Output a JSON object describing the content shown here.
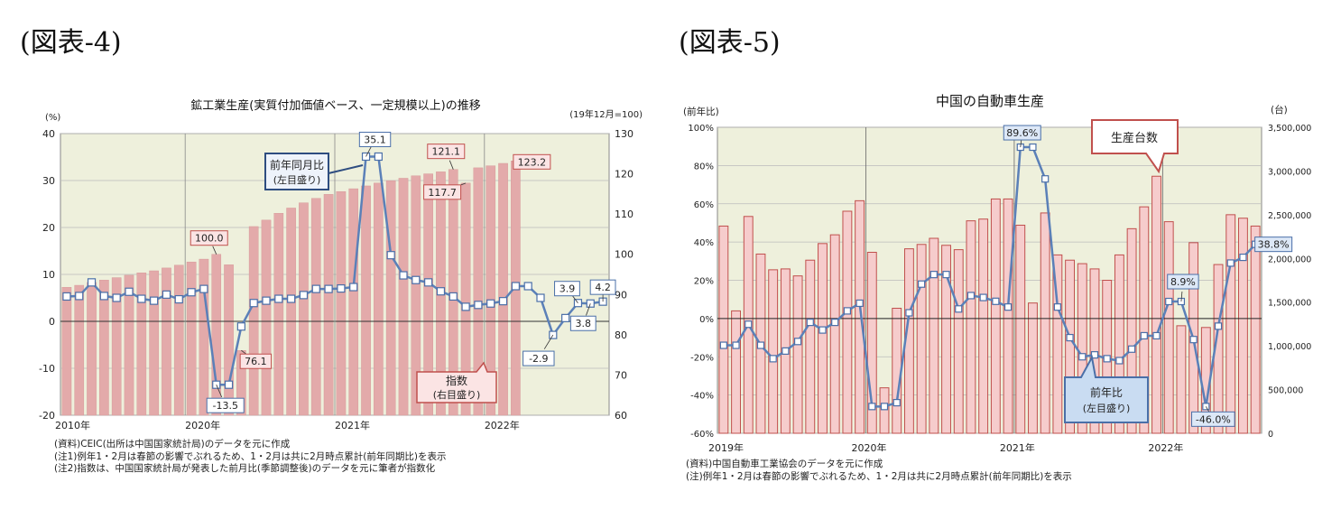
{
  "figures": [
    {
      "label": "(図表-4)",
      "notes": [
        "(資料)CEIC(出所は中国国家統計局)のデータを元に作成",
        "(注1)例年1・2月は春節の影響でぶれるため、1・2月は共に2月時点累計(前年同期比)を表示",
        "(注2)指数は、中国国家統計局が発表した前月比(季節調整後)のデータを元に筆者が指数化"
      ]
    },
    {
      "label": "(図表-5)",
      "notes": [
        "(資料)中国自動車工業協会のデータを元に作成",
        "(注)例年1・2月は春節の影響でぶれるため、1・2月は共に2月時点累計(前年同期比)を表示"
      ]
    }
  ],
  "chart_data": [
    {
      "type": "bar",
      "title": "鉱工業生産(実質付加価値ベース、一定規模以上)の推移",
      "left_unit": "(%)",
      "right_unit": "(19年12月=100)",
      "ylim": [
        -20,
        40
      ],
      "y_ticks": [
        -20,
        -10,
        0,
        10,
        20,
        30,
        40
      ],
      "y2lim": [
        60,
        130
      ],
      "y2_ticks": [
        60,
        70,
        80,
        90,
        100,
        110,
        120,
        130
      ],
      "x_tick_labels": [
        {
          "index": 0,
          "label": "2010年"
        },
        {
          "index": 10,
          "label": "2020年"
        },
        {
          "index": 22,
          "label": "2021年"
        },
        {
          "index": 34,
          "label": "2022年"
        }
      ],
      "line_series": {
        "name": "前年同月比",
        "name_line2": "(左目盛り)",
        "values": [
          5.3,
          5.4,
          8.3,
          5.4,
          5.0,
          6.3,
          4.8,
          4.4,
          5.7,
          4.7,
          6.2,
          6.9,
          -13.5,
          -13.5,
          -1.1,
          3.9,
          4.4,
          4.8,
          4.8,
          5.6,
          6.9,
          6.9,
          7.0,
          7.3,
          35.1,
          35.1,
          14.1,
          9.8,
          8.8,
          8.3,
          6.4,
          5.3,
          3.1,
          3.5,
          3.8,
          4.3,
          7.5,
          7.5,
          5.0,
          -2.9,
          0.7,
          3.9,
          3.8,
          4.2
        ],
        "labels": [
          {
            "index": 12,
            "text": "-13.5"
          },
          {
            "index": 24,
            "text": "35.1"
          },
          {
            "index": 39,
            "text": "-2.9"
          },
          {
            "index": 41,
            "text": "3.9"
          },
          {
            "index": 42,
            "text": "3.8"
          },
          {
            "index": 43,
            "text": "4.2"
          }
        ]
      },
      "bar_series": {
        "name": "指数",
        "name_line2": "(右目盛り)",
        "values": [
          91.8,
          92.3,
          93.0,
          93.6,
          94.2,
          94.8,
          95.4,
          95.9,
          96.6,
          97.3,
          98.1,
          98.8,
          100.0,
          97.4,
          76.1,
          106.9,
          108.5,
          110.2,
          111.5,
          112.8,
          113.9,
          114.9,
          115.6,
          116.3,
          117.0,
          117.7,
          118.3,
          118.9,
          119.5,
          120.0,
          120.5,
          121.1,
          117.7,
          121.5,
          122.0,
          122.6,
          123.2
        ],
        "labels": [
          {
            "index": 12,
            "text": "100.0"
          },
          {
            "index": 14,
            "text": "76.1"
          },
          {
            "index": 31,
            "text": "121.1"
          },
          {
            "index": 32,
            "text": "117.7"
          },
          {
            "index": 36,
            "text": "123.2"
          }
        ]
      }
    },
    {
      "type": "bar",
      "title": "中国の自動車生産",
      "left_unit": "(前年比)",
      "right_unit": "(台)",
      "ylim": [
        -60,
        100
      ],
      "y_ticks": [
        "-60%",
        "-40%",
        "-20%",
        "0%",
        "20%",
        "40%",
        "60%",
        "80%",
        "100%"
      ],
      "y2lim": [
        0,
        3500000
      ],
      "y2_ticks": [
        "0",
        "500,000",
        "1,000,000",
        "1,500,000",
        "2,000,000",
        "2,500,000",
        "3,000,000",
        "3,500,000"
      ],
      "x_tick_labels": [
        {
          "index": 0,
          "label": "2019年"
        },
        {
          "index": 12,
          "label": "2020年"
        },
        {
          "index": 24,
          "label": "2021年"
        },
        {
          "index": 36,
          "label": "2022年"
        }
      ],
      "bar_series": {
        "name": "生産台数",
        "values": [
          2370000,
          1400000,
          2480000,
          2050000,
          1870000,
          1880000,
          1800000,
          1980000,
          2170000,
          2270000,
          2540000,
          2660000,
          2070000,
          520000,
          1430000,
          2110000,
          2160000,
          2230000,
          2150000,
          2100000,
          2430000,
          2450000,
          2680000,
          2680000,
          2380000,
          1490000,
          2520000,
          2040000,
          1980000,
          1940000,
          1880000,
          1750000,
          2040000,
          2340000,
          2590000,
          2940000,
          2420000,
          1230000,
          2180000,
          1210000,
          1930000,
          2500000,
          2460000,
          2370000
        ],
        "x_offset": 0
      },
      "line_series": {
        "name": "前年比",
        "name_line2": "(左目盛り)",
        "values": [
          -14,
          -14,
          -3,
          -14,
          -21,
          -17,
          -12,
          -2,
          -6,
          -2,
          4,
          8,
          -46,
          -46,
          -44,
          3,
          18,
          23,
          23,
          5,
          12,
          11,
          9,
          6,
          89.6,
          89.6,
          73,
          6,
          -10,
          -20,
          -19,
          -21,
          -22,
          -16,
          -9,
          -9,
          8.9,
          8.9,
          -11,
          -46.0,
          -4,
          29,
          32,
          38.8
        ],
        "labels": [
          {
            "index": 24,
            "text": "89.6%"
          },
          {
            "index": 37,
            "text": "8.9%"
          },
          {
            "index": 39,
            "text": "-46.0%"
          },
          {
            "index": 43,
            "text": "38.8%"
          }
        ]
      }
    }
  ]
}
